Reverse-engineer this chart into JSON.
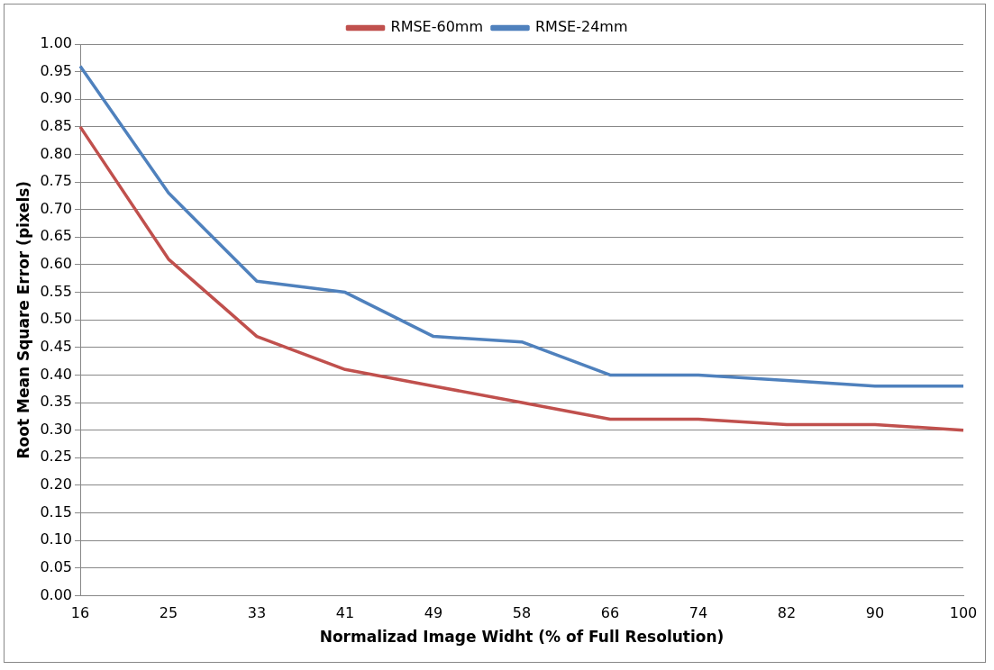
{
  "chart_data": {
    "type": "line",
    "xlabel": "Normalizad Image Widht (% of Full Resolution)",
    "ylabel": "Root Mean Square Error (pixels)",
    "categories": [
      "16",
      "25",
      "33",
      "41",
      "49",
      "58",
      "66",
      "74",
      "82",
      "90",
      "100"
    ],
    "series": [
      {
        "name": "RMSE-60mm",
        "color": "#c0504d",
        "values": [
          0.85,
          0.61,
          0.47,
          0.41,
          0.38,
          0.35,
          0.32,
          0.32,
          0.31,
          0.31,
          0.3
        ]
      },
      {
        "name": "RMSE-24mm",
        "color": "#4f81bd",
        "values": [
          0.96,
          0.73,
          0.57,
          0.55,
          0.47,
          0.46,
          0.4,
          0.4,
          0.39,
          0.38,
          0.38
        ]
      }
    ],
    "ylim": [
      0,
      1
    ],
    "yticks": [
      {
        "value": 0,
        "label": "0.00"
      },
      {
        "value": 0.05,
        "label": "0.05"
      },
      {
        "value": 0.1,
        "label": "0.10"
      },
      {
        "value": 0.15,
        "label": "0.15"
      },
      {
        "value": 0.2,
        "label": "0.20"
      },
      {
        "value": 0.25,
        "label": "0.25"
      },
      {
        "value": 0.3,
        "label": "0.30"
      },
      {
        "value": 0.35,
        "label": "0.35"
      },
      {
        "value": 0.4,
        "label": "0.40"
      },
      {
        "value": 0.45,
        "label": "0.45"
      },
      {
        "value": 0.5,
        "label": "0.50"
      },
      {
        "value": 0.55,
        "label": "0.55"
      },
      {
        "value": 0.6,
        "label": "0.60"
      },
      {
        "value": 0.65,
        "label": "0.65"
      },
      {
        "value": 0.7,
        "label": "0.70"
      },
      {
        "value": 0.75,
        "label": "0.75"
      },
      {
        "value": 0.8,
        "label": "0.80"
      },
      {
        "value": 0.85,
        "label": "0.85"
      },
      {
        "value": 0.9,
        "label": "0.90"
      },
      {
        "value": 0.95,
        "label": "0.95"
      },
      {
        "value": 1,
        "label": "1.00"
      }
    ],
    "grid": "y",
    "legend": "top",
    "marker": "none",
    "line_style": "solid"
  }
}
